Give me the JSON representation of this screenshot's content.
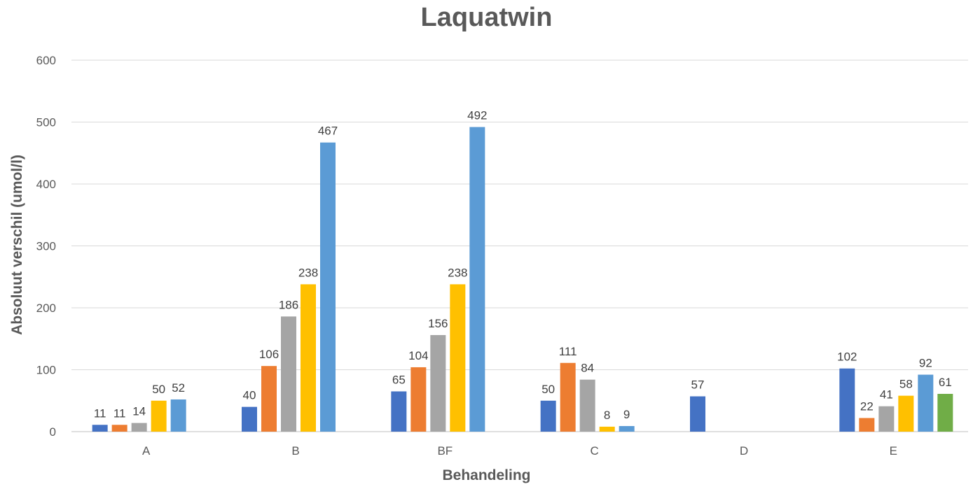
{
  "chart_data": {
    "type": "bar",
    "title": "Laquatwin",
    "xlabel": "Behandeling",
    "ylabel": "Absoluut verschil (umol/l)",
    "ylim": [
      0,
      600
    ],
    "yticks": [
      0,
      100,
      200,
      300,
      400,
      500,
      600
    ],
    "grid": true,
    "legend": "none",
    "categories": [
      "A",
      "B",
      "BF",
      "C",
      "D",
      "E"
    ],
    "groups": [
      {
        "category": "A",
        "values": [
          11,
          11,
          14,
          50,
          52
        ]
      },
      {
        "category": "B",
        "values": [
          40,
          106,
          186,
          238,
          467
        ]
      },
      {
        "category": "BF",
        "values": [
          65,
          104,
          156,
          238,
          492
        ]
      },
      {
        "category": "C",
        "values": [
          50,
          111,
          84,
          8,
          9
        ]
      },
      {
        "category": "D",
        "values": [
          57
        ]
      },
      {
        "category": "E",
        "values": [
          102,
          22,
          41,
          58,
          92,
          61
        ]
      }
    ],
    "colors": [
      "#4472C4",
      "#ED7D31",
      "#A5A5A5",
      "#FFC000",
      "#5B9BD5",
      "#70AD47"
    ]
  }
}
